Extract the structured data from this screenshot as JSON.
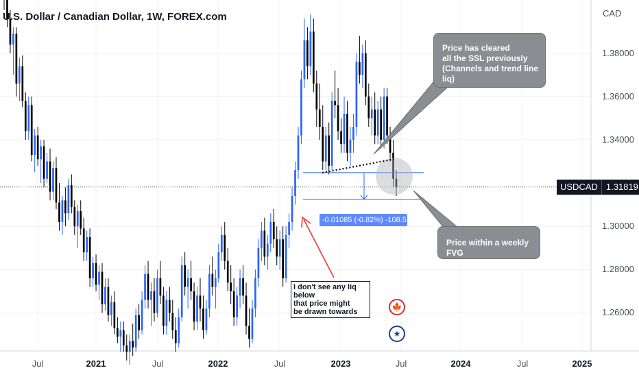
{
  "header": {
    "title": "U.S. Dollar / Canadian Dollar, 1W, FOREX.com",
    "currency": "CAD"
  },
  "price_tag": {
    "symbol": "USDCAD",
    "value": "1.31819"
  },
  "annotations": {
    "callout_ssl": [
      "Price has cleared",
      "all the SSL previously",
      "(Channels and trend line liq)"
    ],
    "callout_fvg": "Price within a weekly FVG",
    "note_liq": [
      "I don't see any liq below",
      "that price might",
      "be drawn towards"
    ],
    "measure": "-0.01085 (-0.82%) -108.5"
  },
  "icons": {
    "flag_ca": "canada-flag-icon",
    "flag_us": "usa-flag-icon"
  },
  "colors": {
    "up": "#2962ff",
    "down": "#000000",
    "bg": "#ffffff",
    "callout": "#8b8d92",
    "arrow": "#e53935"
  },
  "chart_data": {
    "type": "candlestick",
    "instrument": "USDCAD",
    "timeframe": "1W",
    "y_ticks": [
      "1.38000",
      "1.36000",
      "1.34000",
      "1.30000",
      "1.28000",
      "1.26000"
    ],
    "y_tick_values": [
      1.38,
      1.36,
      1.34,
      1.3,
      1.28,
      1.26
    ],
    "ylim": [
      1.244,
      1.403
    ],
    "x_ticks": [
      {
        "label": "Jul",
        "year": false
      },
      {
        "label": "2021",
        "year": true
      },
      {
        "label": "Jul",
        "year": false
      },
      {
        "label": "2022",
        "year": true
      },
      {
        "label": "Jul",
        "year": false
      },
      {
        "label": "2023",
        "year": true
      },
      {
        "label": "Jul",
        "year": false
      },
      {
        "label": "2024",
        "year": true
      },
      {
        "label": "Jul",
        "year": false
      },
      {
        "label": "2025",
        "year": true
      }
    ],
    "last_price": 1.31819,
    "fvg_zone": [
      1.3125,
      1.3248
    ],
    "trend_line": [
      [
        1.3248,
        1.331
      ]
    ],
    "key_levels": {
      "fvg_top": 1.3248,
      "fvg_bottom": 1.3125
    },
    "candles": [
      [
        1.41,
        1.425,
        1.4,
        1.405
      ],
      [
        1.405,
        1.412,
        1.392,
        1.396
      ],
      [
        1.396,
        1.4,
        1.38,
        1.384
      ],
      [
        1.384,
        1.392,
        1.37,
        1.389
      ],
      [
        1.389,
        1.392,
        1.36,
        1.366
      ],
      [
        1.366,
        1.378,
        1.358,
        1.374
      ],
      [
        1.374,
        1.379,
        1.355,
        1.358
      ],
      [
        1.358,
        1.362,
        1.34,
        1.344
      ],
      [
        1.344,
        1.36,
        1.34,
        1.356
      ],
      [
        1.356,
        1.36,
        1.33,
        1.333
      ],
      [
        1.333,
        1.345,
        1.325,
        1.342
      ],
      [
        1.342,
        1.346,
        1.328,
        1.331
      ],
      [
        1.331,
        1.34,
        1.32,
        1.337
      ],
      [
        1.337,
        1.34,
        1.318,
        1.322
      ],
      [
        1.322,
        1.334,
        1.32,
        1.33
      ],
      [
        1.33,
        1.336,
        1.312,
        1.316
      ],
      [
        1.316,
        1.33,
        1.312,
        1.327
      ],
      [
        1.327,
        1.332,
        1.308,
        1.311
      ],
      [
        1.311,
        1.32,
        1.298,
        1.302
      ],
      [
        1.302,
        1.314,
        1.296,
        1.312
      ],
      [
        1.312,
        1.318,
        1.3,
        1.306
      ],
      [
        1.306,
        1.322,
        1.303,
        1.319
      ],
      [
        1.319,
        1.324,
        1.306,
        1.309
      ],
      [
        1.309,
        1.312,
        1.296,
        1.3
      ],
      [
        1.3,
        1.31,
        1.29,
        1.307
      ],
      [
        1.307,
        1.312,
        1.296,
        1.299
      ],
      [
        1.299,
        1.304,
        1.284,
        1.288
      ],
      [
        1.288,
        1.298,
        1.284,
        1.295
      ],
      [
        1.295,
        1.299,
        1.272,
        1.276
      ],
      [
        1.276,
        1.286,
        1.272,
        1.283
      ],
      [
        1.283,
        1.287,
        1.27,
        1.273
      ],
      [
        1.273,
        1.282,
        1.266,
        1.279
      ],
      [
        1.279,
        1.283,
        1.26,
        1.264
      ],
      [
        1.264,
        1.276,
        1.261,
        1.272
      ],
      [
        1.272,
        1.276,
        1.256,
        1.259
      ],
      [
        1.259,
        1.268,
        1.254,
        1.265
      ],
      [
        1.265,
        1.27,
        1.25,
        1.253
      ],
      [
        1.253,
        1.258,
        1.246,
        1.249
      ],
      [
        1.249,
        1.256,
        1.242,
        1.252
      ],
      [
        1.252,
        1.256,
        1.242,
        1.245
      ],
      [
        1.245,
        1.25,
        1.238,
        1.242
      ],
      [
        1.242,
        1.25,
        1.236,
        1.247
      ],
      [
        1.247,
        1.255,
        1.24,
        1.244
      ],
      [
        1.244,
        1.262,
        1.242,
        1.259
      ],
      [
        1.259,
        1.264,
        1.248,
        1.252
      ],
      [
        1.252,
        1.27,
        1.25,
        1.266
      ],
      [
        1.266,
        1.282,
        1.262,
        1.278
      ],
      [
        1.278,
        1.284,
        1.262,
        1.266
      ],
      [
        1.266,
        1.274,
        1.254,
        1.27
      ],
      [
        1.27,
        1.276,
        1.256,
        1.26
      ],
      [
        1.26,
        1.28,
        1.258,
        1.276
      ],
      [
        1.276,
        1.284,
        1.264,
        1.268
      ],
      [
        1.268,
        1.272,
        1.25,
        1.254
      ],
      [
        1.254,
        1.27,
        1.25,
        1.266
      ],
      [
        1.266,
        1.272,
        1.256,
        1.26
      ],
      [
        1.26,
        1.266,
        1.248,
        1.252
      ],
      [
        1.252,
        1.258,
        1.242,
        1.246
      ],
      [
        1.246,
        1.262,
        1.244,
        1.258
      ],
      [
        1.258,
        1.286,
        1.256,
        1.282
      ],
      [
        1.282,
        1.288,
        1.268,
        1.272
      ],
      [
        1.272,
        1.28,
        1.262,
        1.276
      ],
      [
        1.276,
        1.284,
        1.266,
        1.27
      ],
      [
        1.27,
        1.274,
        1.252,
        1.256
      ],
      [
        1.256,
        1.272,
        1.252,
        1.268
      ],
      [
        1.268,
        1.276,
        1.256,
        1.262
      ],
      [
        1.262,
        1.268,
        1.248,
        1.252
      ],
      [
        1.252,
        1.266,
        1.25,
        1.262
      ],
      [
        1.262,
        1.282,
        1.258,
        1.278
      ],
      [
        1.278,
        1.286,
        1.268,
        1.272
      ],
      [
        1.272,
        1.28,
        1.262,
        1.276
      ],
      [
        1.276,
        1.292,
        1.274,
        1.288
      ],
      [
        1.288,
        1.3,
        1.284,
        1.296
      ],
      [
        1.296,
        1.302,
        1.28,
        1.284
      ],
      [
        1.284,
        1.29,
        1.27,
        1.274
      ],
      [
        1.274,
        1.282,
        1.264,
        1.27
      ],
      [
        1.27,
        1.276,
        1.254,
        1.258
      ],
      [
        1.258,
        1.272,
        1.254,
        1.268
      ],
      [
        1.268,
        1.28,
        1.262,
        1.276
      ],
      [
        1.276,
        1.282,
        1.264,
        1.268
      ],
      [
        1.268,
        1.274,
        1.25,
        1.254
      ],
      [
        1.254,
        1.262,
        1.244,
        1.248
      ],
      [
        1.248,
        1.266,
        1.246,
        1.262
      ],
      [
        1.262,
        1.28,
        1.258,
        1.276
      ],
      [
        1.276,
        1.294,
        1.272,
        1.29
      ],
      [
        1.29,
        1.302,
        1.284,
        1.298
      ],
      [
        1.298,
        1.304,
        1.282,
        1.286
      ],
      [
        1.286,
        1.296,
        1.28,
        1.292
      ],
      [
        1.292,
        1.306,
        1.288,
        1.302
      ],
      [
        1.302,
        1.308,
        1.29,
        1.294
      ],
      [
        1.294,
        1.3,
        1.282,
        1.286
      ],
      [
        1.286,
        1.298,
        1.28,
        1.294
      ],
      [
        1.294,
        1.3,
        1.272,
        1.276
      ],
      [
        1.276,
        1.3,
        1.274,
        1.296
      ],
      [
        1.296,
        1.306,
        1.29,
        1.302
      ],
      [
        1.302,
        1.318,
        1.298,
        1.314
      ],
      [
        1.314,
        1.33,
        1.31,
        1.326
      ],
      [
        1.326,
        1.346,
        1.322,
        1.342
      ],
      [
        1.342,
        1.372,
        1.338,
        1.368
      ],
      [
        1.368,
        1.396,
        1.364,
        1.386
      ],
      [
        1.386,
        1.392,
        1.368,
        1.374
      ],
      [
        1.374,
        1.398,
        1.37,
        1.39
      ],
      [
        1.39,
        1.396,
        1.362,
        1.366
      ],
      [
        1.366,
        1.372,
        1.346,
        1.354
      ],
      [
        1.354,
        1.366,
        1.34,
        1.346
      ],
      [
        1.346,
        1.356,
        1.326,
        1.33
      ],
      [
        1.33,
        1.346,
        1.326,
        1.342
      ],
      [
        1.342,
        1.348,
        1.324,
        1.328
      ],
      [
        1.328,
        1.362,
        1.326,
        1.358
      ],
      [
        1.358,
        1.372,
        1.35,
        1.356
      ],
      [
        1.356,
        1.364,
        1.34,
        1.344
      ],
      [
        1.344,
        1.35,
        1.334,
        1.338
      ],
      [
        1.338,
        1.36,
        1.334,
        1.352
      ],
      [
        1.352,
        1.358,
        1.33,
        1.334
      ],
      [
        1.334,
        1.346,
        1.328,
        1.34
      ],
      [
        1.34,
        1.352,
        1.334,
        1.346
      ],
      [
        1.346,
        1.38,
        1.342,
        1.376
      ],
      [
        1.376,
        1.388,
        1.366,
        1.37
      ],
      [
        1.37,
        1.384,
        1.364,
        1.38
      ],
      [
        1.38,
        1.386,
        1.356,
        1.36
      ],
      [
        1.36,
        1.366,
        1.346,
        1.35
      ],
      [
        1.35,
        1.36,
        1.342,
        1.354
      ],
      [
        1.354,
        1.362,
        1.338,
        1.342
      ],
      [
        1.342,
        1.358,
        1.338,
        1.354
      ],
      [
        1.354,
        1.36,
        1.336,
        1.34
      ],
      [
        1.34,
        1.364,
        1.336,
        1.36
      ],
      [
        1.36,
        1.364,
        1.338,
        1.342
      ],
      [
        1.342,
        1.346,
        1.33,
        1.334
      ],
      [
        1.334,
        1.34,
        1.318,
        1.322
      ],
      [
        1.322,
        1.326,
        1.314,
        1.31819
      ]
    ]
  }
}
